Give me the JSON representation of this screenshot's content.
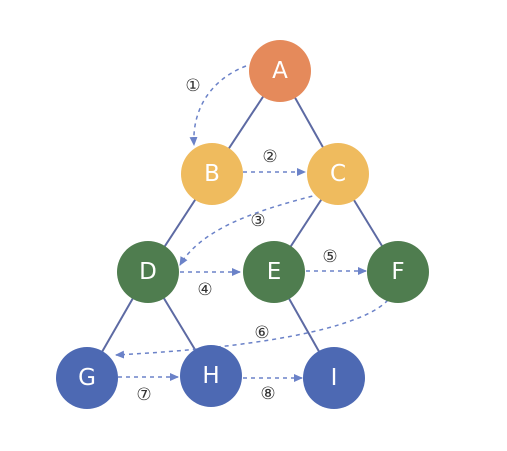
{
  "colors": {
    "orange": "#e58a5b",
    "yellow": "#efbb5e",
    "green": "#4f7d4f",
    "blue": "#4d69b3",
    "tree_edge": "#5d6aa3",
    "arrow": "#6b82c8"
  },
  "nodes": [
    {
      "id": "A",
      "label": "A",
      "color": "orange"
    },
    {
      "id": "B",
      "label": "B",
      "color": "yellow"
    },
    {
      "id": "C",
      "label": "C",
      "color": "yellow"
    },
    {
      "id": "D",
      "label": "D",
      "color": "green"
    },
    {
      "id": "E",
      "label": "E",
      "color": "green"
    },
    {
      "id": "F",
      "label": "F",
      "color": "green"
    },
    {
      "id": "G",
      "label": "G",
      "color": "blue"
    },
    {
      "id": "H",
      "label": "H",
      "color": "blue"
    },
    {
      "id": "I",
      "label": "I",
      "color": "blue"
    }
  ],
  "tree_edges": [
    [
      "A",
      "B"
    ],
    [
      "A",
      "C"
    ],
    [
      "B",
      "D"
    ],
    [
      "C",
      "E"
    ],
    [
      "C",
      "F"
    ],
    [
      "D",
      "G"
    ],
    [
      "D",
      "H"
    ],
    [
      "E",
      "I"
    ]
  ],
  "steps": [
    {
      "label": "①",
      "from": "A",
      "to": "B"
    },
    {
      "label": "②",
      "from": "B",
      "to": "C"
    },
    {
      "label": "③",
      "from": "C",
      "to": "D"
    },
    {
      "label": "④",
      "from": "D",
      "to": "E"
    },
    {
      "label": "⑤",
      "from": "E",
      "to": "F"
    },
    {
      "label": "⑥",
      "from": "F",
      "to": "G"
    },
    {
      "label": "⑦",
      "from": "G",
      "to": "H"
    },
    {
      "label": "⑧",
      "from": "H",
      "to": "I"
    }
  ]
}
